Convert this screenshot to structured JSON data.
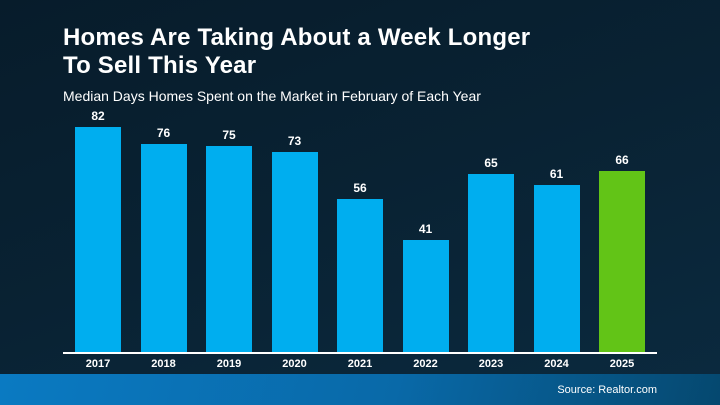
{
  "slide": {
    "title": "Homes Are Taking About a Week Longer\nTo Sell This Year",
    "subtitle": "Median Days Homes Spent on the Market in February of Each Year",
    "source": "Source: Realtor.com"
  },
  "colors": {
    "bar": "#00AEEF",
    "highlight_bar": "#62C417",
    "background_top": "#071C2B",
    "background_bottom": "#0B2A3F",
    "footer_left": "#0A7AC2",
    "footer_right": "#05486F",
    "axis_line": "#FFFFFF",
    "text": "#FFFFFF"
  },
  "chart_data": {
    "type": "bar",
    "title": "Homes Are Taking About a Week Longer To Sell This Year",
    "subtitle": "Median Days Homes Spent on the Market in February of Each Year",
    "categories": [
      "2017",
      "2018",
      "2019",
      "2020",
      "2021",
      "2022",
      "2023",
      "2024",
      "2025"
    ],
    "values": [
      82,
      76,
      75,
      73,
      56,
      41,
      65,
      61,
      66
    ],
    "value_labels_shown": true,
    "highlight_index": 8,
    "highlight_category": "2025",
    "xlabel": "",
    "ylabel": "",
    "ylim": [
      0,
      88
    ],
    "grid": false,
    "legend": false,
    "source": "Source: Realtor.com"
  }
}
